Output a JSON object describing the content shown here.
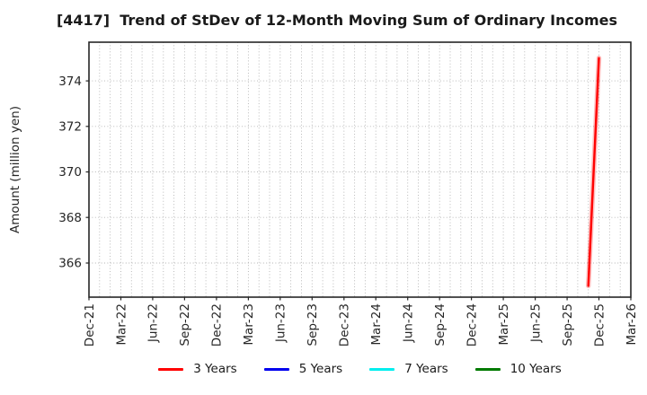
{
  "title": "[4417]  Trend of StDev of 12-Month Moving Sum of Ordinary Incomes",
  "colors": {
    "background": "#ffffff",
    "spine": "#262626",
    "grid": "#b3b3b3",
    "tick_label": "#262626",
    "title": "#1a1a1a"
  },
  "chart_data": {
    "type": "line",
    "title": "[4417]  Trend of StDev of 12-Month Moving Sum of Ordinary Incomes",
    "xlabel": "",
    "ylabel": "Amount (million yen)",
    "xlim": [
      "Dec-21",
      "Mar-26"
    ],
    "ylim": [
      364.5,
      375.7
    ],
    "yticks": [
      366,
      368,
      370,
      372,
      374
    ],
    "x_ticklabels": [
      "Dec-21",
      "Mar-22",
      "Jun-22",
      "Sep-22",
      "Dec-22",
      "Mar-23",
      "Jun-23",
      "Sep-23",
      "Dec-23",
      "Mar-24",
      "Jun-24",
      "Sep-24",
      "Dec-24",
      "Mar-25",
      "Jun-25",
      "Sep-25",
      "Dec-25",
      "Mar-26"
    ],
    "grid": "dotted; vertical line every month, horizontal line at every y tick",
    "legend_position": "bottom center, no frame",
    "series": [
      {
        "name": "3 Years",
        "color": "#ff0000",
        "points": [
          {
            "x": "Nov-25",
            "y": 365.0
          },
          {
            "x": "Dec-25",
            "y": 375.0
          }
        ]
      },
      {
        "name": "5 Years",
        "color": "#0000ee",
        "points": []
      },
      {
        "name": "7 Years",
        "color": "#00eeee",
        "points": []
      },
      {
        "name": "10 Years",
        "color": "#007a00",
        "points": []
      }
    ]
  }
}
